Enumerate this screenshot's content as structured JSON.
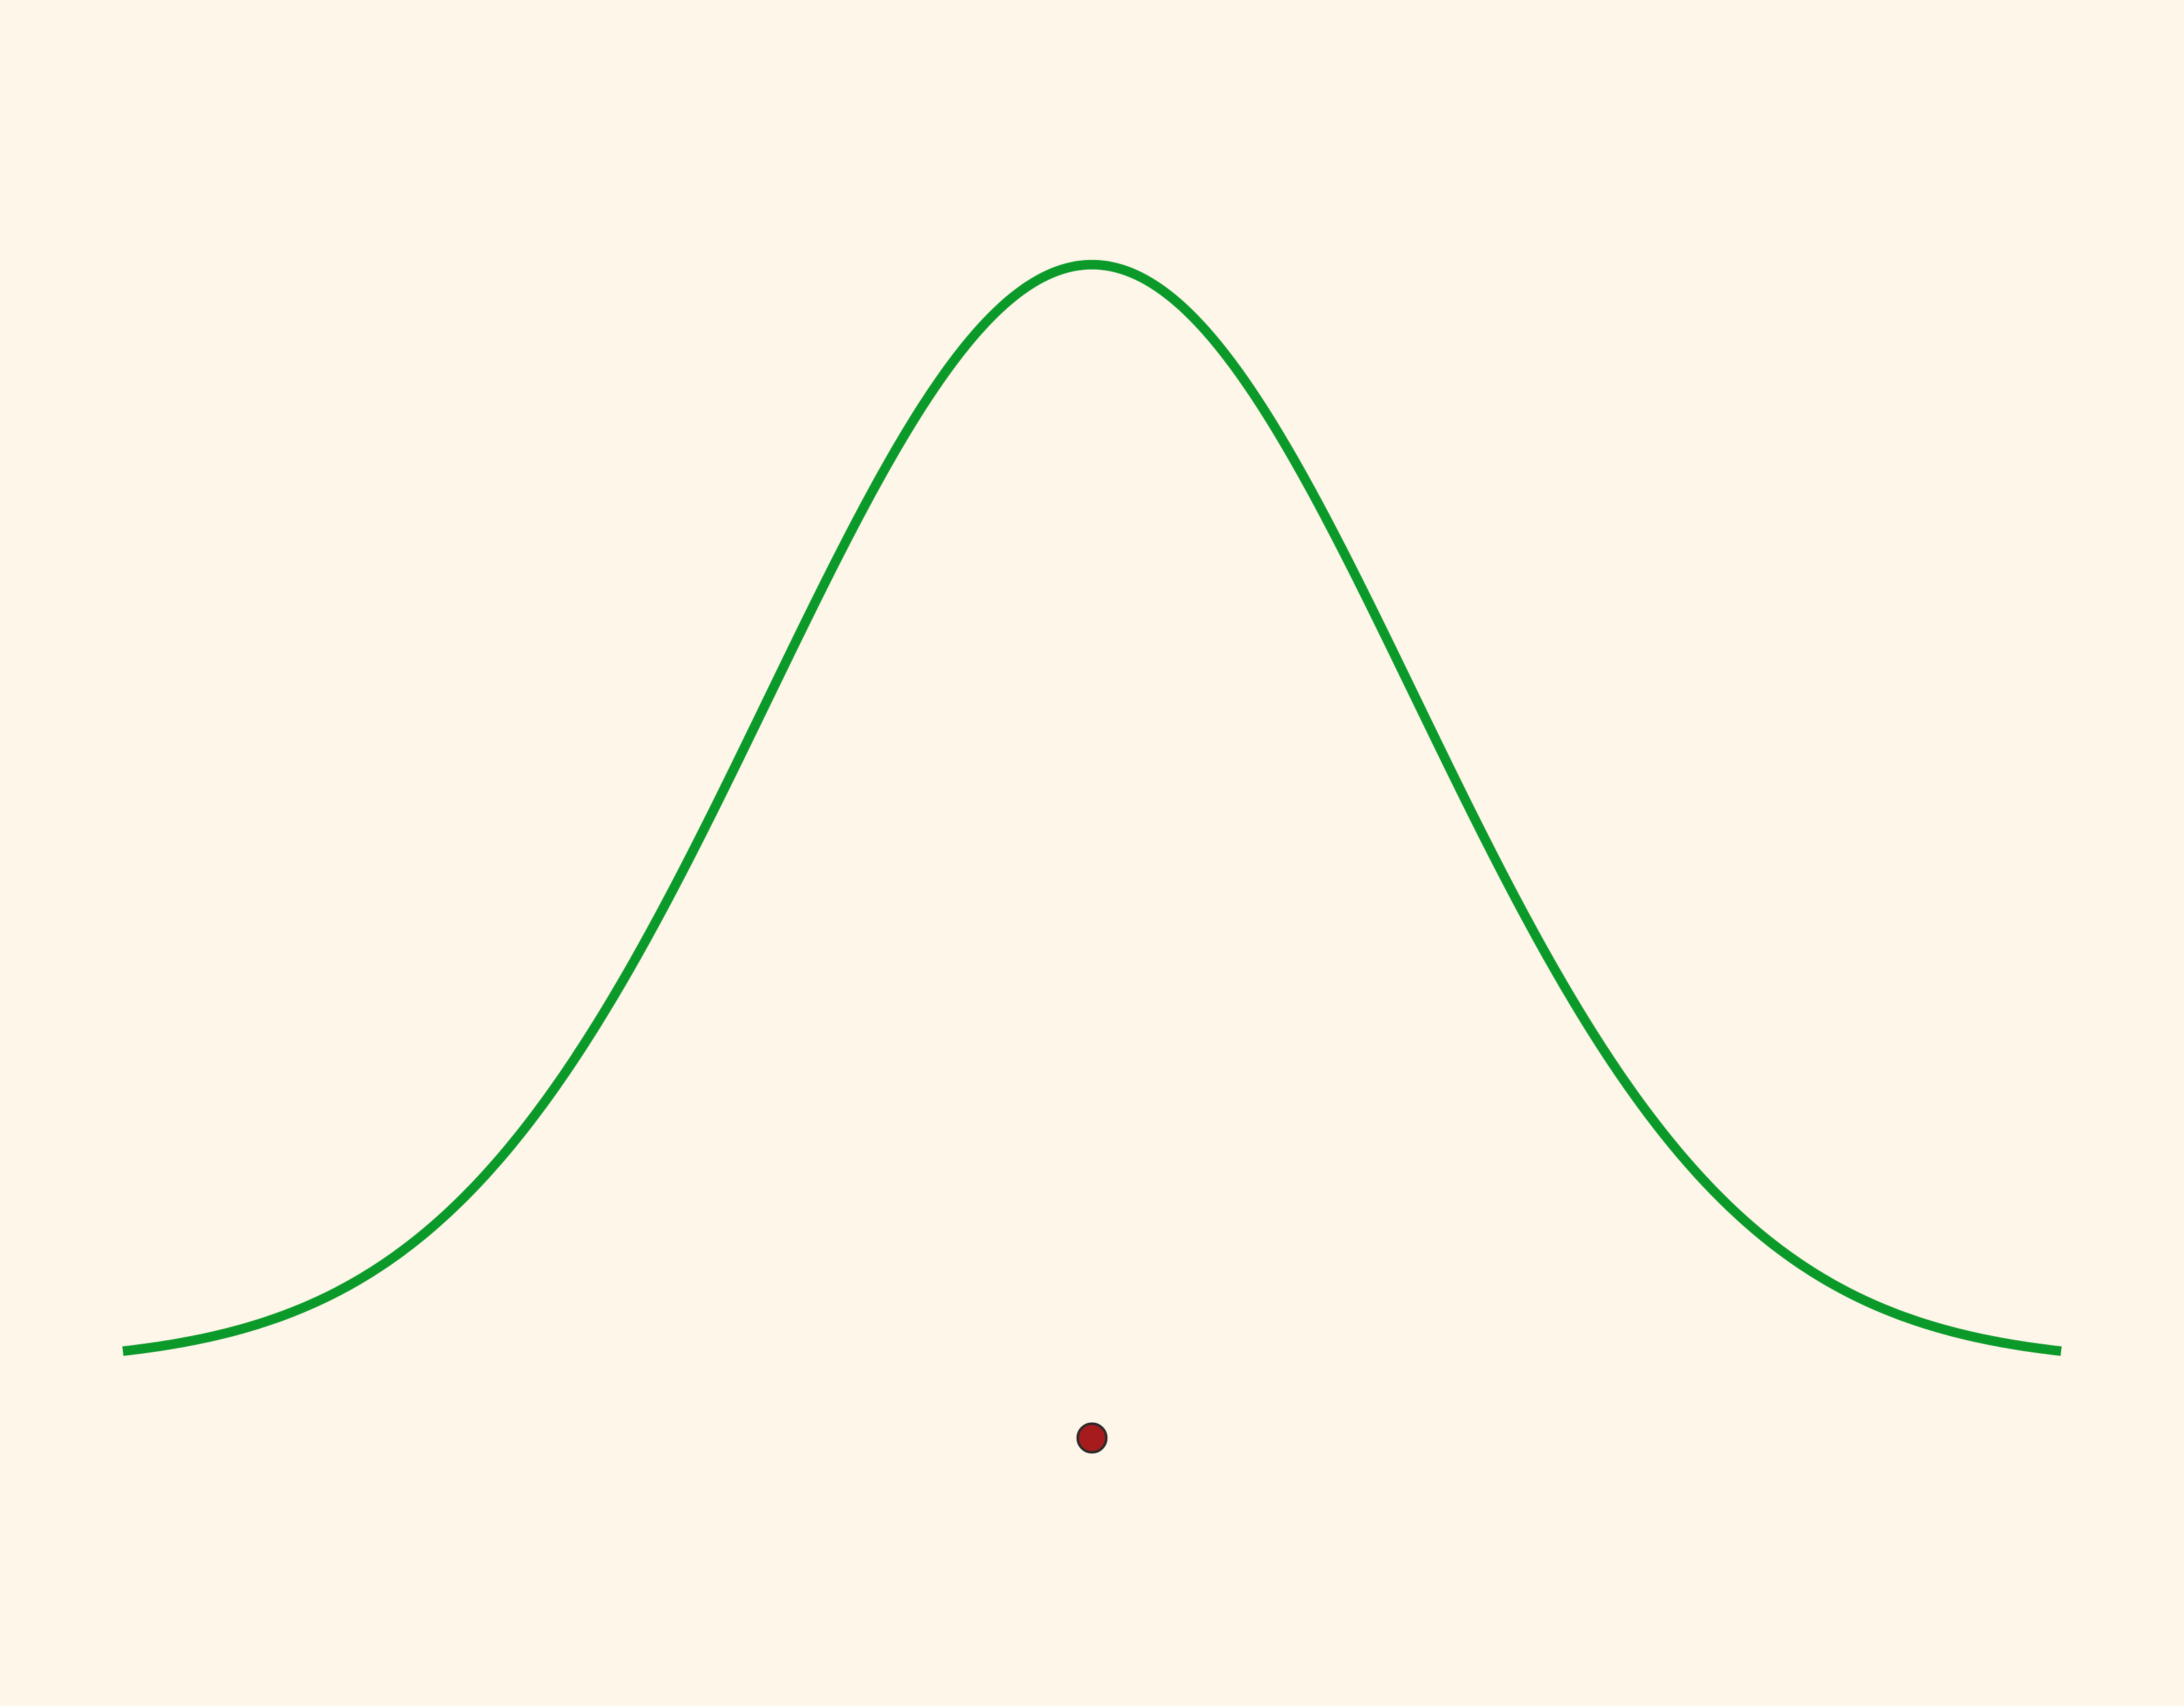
{
  "colors": {
    "background": "#fff6ea",
    "curve": "#0b9a2a",
    "marker_fill": "#a61c1c",
    "marker_stroke": "#2a2a2a"
  },
  "chart_data": {
    "type": "line",
    "title": "",
    "xlabel": "",
    "ylabel": "",
    "grid": false,
    "axes_visible": false,
    "legend": "none",
    "xlim": [
      -3,
      3
    ],
    "ylim": [
      -0.04,
      0.4
    ],
    "series": [
      {
        "kind": "gaussian_density",
        "mean": 0,
        "sd": 1,
        "x_range": [
          -3,
          3
        ]
      }
    ],
    "points": [
      {
        "x": 0,
        "y": -0.0271
      }
    ]
  }
}
